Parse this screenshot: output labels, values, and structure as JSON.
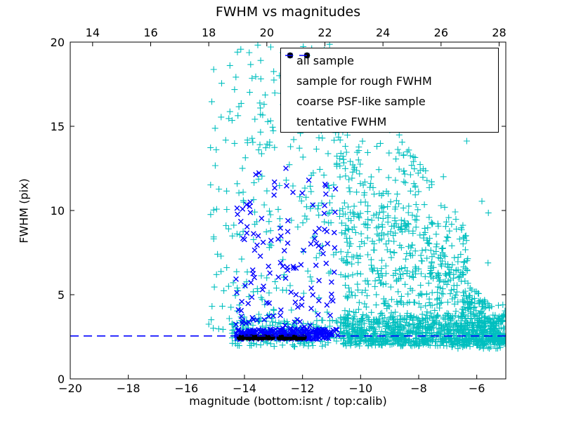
{
  "window": {
    "kind": "matplotlib-figure",
    "background": "#ffffff"
  },
  "chart_data": {
    "type": "scatter",
    "title": "FWHM vs magnitudes",
    "xlabel": "magnitude (bottom:isnt / top:calib)",
    "ylabel": "FWHM (pix)",
    "xlim": [
      -20,
      -5
    ],
    "ylim": [
      0,
      20
    ],
    "grid": false,
    "legend_position": "upper right",
    "axis_color": "#000000",
    "tick_length": 6,
    "x_ticks": [
      {
        "v": -20,
        "label": "−20"
      },
      {
        "v": -18,
        "label": "−18"
      },
      {
        "v": -16,
        "label": "−16"
      },
      {
        "v": -14,
        "label": "−14"
      },
      {
        "v": -12,
        "label": "−12"
      },
      {
        "v": -10,
        "label": "−10"
      },
      {
        "v": -8,
        "label": "−8"
      },
      {
        "v": -6,
        "label": "−6"
      }
    ],
    "y_ticks": [
      {
        "v": 0,
        "label": "0"
      },
      {
        "v": 5,
        "label": "5"
      },
      {
        "v": 10,
        "label": "10"
      },
      {
        "v": 15,
        "label": "15"
      },
      {
        "v": 20,
        "label": "20"
      }
    ],
    "top_axis": {
      "relation": "calib = isnt + 33.23",
      "offset": 33.23,
      "ticks": [
        {
          "v": 14,
          "label": "14"
        },
        {
          "v": 16,
          "label": "16"
        },
        {
          "v": 18,
          "label": "18"
        },
        {
          "v": 20,
          "label": "20"
        },
        {
          "v": 22,
          "label": "22"
        },
        {
          "v": 24,
          "label": "24"
        },
        {
          "v": 26,
          "label": "26"
        },
        {
          "v": 28,
          "label": "28"
        }
      ]
    },
    "random_seed": 20,
    "series": [
      {
        "name": "all sample",
        "marker": "plus",
        "color": "#00BFBF",
        "clusters": [
          {
            "n": 240,
            "mag": [
              -15.25,
              -10.9
            ],
            "fwhm": [
              2.9,
              19.8
            ],
            "bias": 1.35
          },
          {
            "n": 40,
            "mag": [
              -13.8,
              -11.0
            ],
            "fwhm": [
              13.5,
              19.9
            ],
            "bias": 1.0
          },
          {
            "n": 170,
            "mag": [
              -14.45,
              -10.8
            ],
            "fwhm": [
              1.9,
              3.5
            ],
            "bias": 1.0
          },
          {
            "n": 520,
            "mag": [
              -10.7,
              -5.0
            ],
            "fwhm": [
              1.95,
              3.8
            ],
            "bias": 1.1
          },
          {
            "n": 780,
            "mag": [
              -10.7,
              -5.0
            ],
            "fwhm": [
              2.2,
              14.5
            ],
            "bias": 2.0,
            "env": [
              [
                -10.7,
                14.5
              ],
              [
                -5.0,
                3.4
              ]
            ]
          },
          {
            "n": 300,
            "mag": [
              -11.05,
              -6.3
            ],
            "fwhm": [
              6.0,
              20.0
            ],
            "bias": 1.15,
            "env": [
              [
                -10.9,
                20.0
              ],
              [
                -6.3,
                9.0
              ]
            ]
          },
          {
            "n": 120,
            "mag": [
              -6.95,
              -5.0
            ],
            "fwhm": [
              1.8,
              4.6
            ],
            "bias": 1.2
          },
          {
            "n": 10,
            "mag": [
              -7.3,
              -5.05
            ],
            "fwhm": [
              4.8,
              15.6
            ],
            "bias": 1.0
          }
        ]
      },
      {
        "name": "sample for rough FWHM",
        "marker": "x",
        "color": "#0000FF",
        "clusters": [
          {
            "n": 135,
            "mag": [
              -14.3,
              -10.85
            ],
            "fwhm": [
              2.95,
              12.6
            ],
            "bias": 1.5
          },
          {
            "n": 240,
            "mag": [
              -14.3,
              -10.78
            ],
            "fwhm": [
              2.35,
              2.95
            ],
            "bias": 1.0
          }
        ]
      },
      {
        "name": "coarse PSF-like sample",
        "marker": "dot",
        "color": "#000000",
        "points": [
          [
            -14.17,
            2.45
          ],
          [
            -14.05,
            2.44
          ],
          [
            -13.92,
            2.46
          ],
          [
            -13.84,
            2.43
          ],
          [
            -13.76,
            2.47
          ],
          [
            -13.68,
            2.44
          ],
          [
            -13.6,
            2.46
          ],
          [
            -13.52,
            2.43
          ],
          [
            -13.44,
            2.46
          ],
          [
            -13.36,
            2.44
          ],
          [
            -13.28,
            2.47
          ],
          [
            -13.16,
            2.44
          ],
          [
            -13.04,
            2.46
          ],
          [
            -12.8,
            2.44
          ],
          [
            -12.7,
            2.46
          ],
          [
            -12.6,
            2.43
          ],
          [
            -12.5,
            2.46
          ],
          [
            -12.4,
            2.44
          ],
          [
            -12.3,
            2.46
          ],
          [
            -12.2,
            2.43
          ],
          [
            -12.1,
            2.45
          ],
          [
            -12.0,
            2.44
          ],
          [
            -11.95,
            2.46
          ]
        ]
      },
      {
        "name": "tentative FWHM",
        "marker": "dashline",
        "color": "#0000FF",
        "y": 2.55,
        "dash": [
          12,
          7
        ]
      }
    ]
  }
}
